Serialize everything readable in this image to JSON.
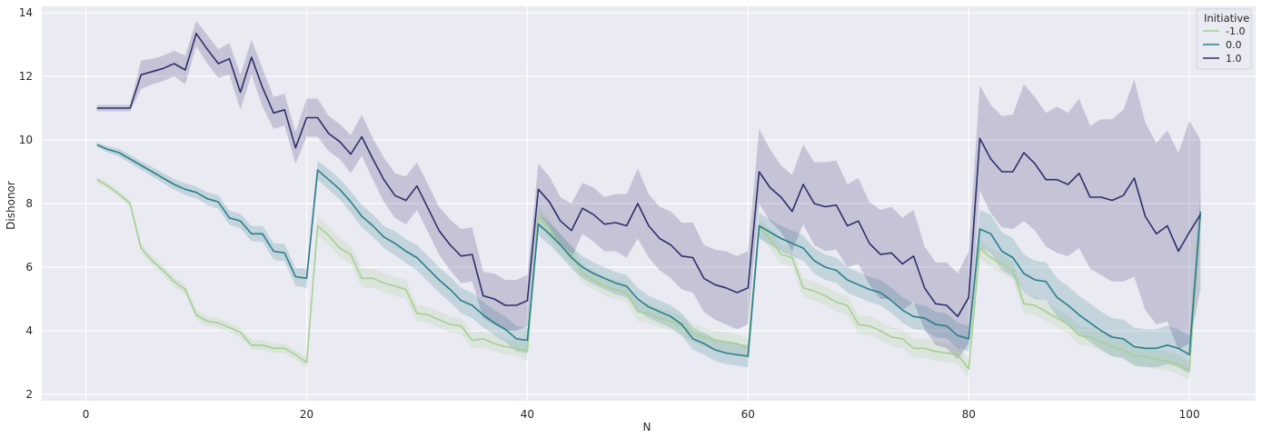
{
  "chart_data": {
    "type": "line",
    "xlabel": "N",
    "ylabel": "Dishonor",
    "xlim": [
      -4,
      106
    ],
    "ylim": [
      1.8,
      14.2
    ],
    "xticks": [
      0,
      20,
      40,
      60,
      80,
      100
    ],
    "yticks": [
      2,
      4,
      6,
      8,
      10,
      12,
      14
    ],
    "grid": true,
    "legend": {
      "title": "Initiative",
      "placement": "top-right"
    },
    "series": [
      {
        "name": "-1.0",
        "color": "#a6cf92",
        "x": [
          1,
          2,
          3,
          4,
          5,
          6,
          7,
          8,
          9,
          10,
          11,
          12,
          13,
          14,
          15,
          16,
          17,
          18,
          19,
          20,
          21,
          22,
          23,
          24,
          25,
          26,
          27,
          28,
          29,
          30,
          31,
          32,
          33,
          34,
          35,
          36,
          37,
          38,
          39,
          40,
          41,
          42,
          43,
          44,
          45,
          46,
          47,
          48,
          49,
          50,
          51,
          52,
          53,
          54,
          55,
          56,
          57,
          58,
          59,
          60,
          61,
          62,
          63,
          64,
          65,
          66,
          67,
          68,
          69,
          70,
          71,
          72,
          73,
          74,
          75,
          76,
          77,
          78,
          79,
          80,
          81,
          82,
          83,
          84,
          85,
          86,
          87,
          88,
          89,
          90,
          91,
          92,
          93,
          94,
          95,
          96,
          97,
          98,
          99,
          100,
          101
        ],
        "y": [
          8.75,
          8.55,
          8.3,
          8.0,
          6.6,
          6.2,
          5.9,
          5.55,
          5.3,
          4.5,
          4.3,
          4.25,
          4.1,
          3.95,
          3.55,
          3.55,
          3.45,
          3.45,
          3.25,
          3.0,
          7.3,
          7.0,
          6.6,
          6.4,
          5.65,
          5.65,
          5.5,
          5.4,
          5.3,
          4.55,
          4.5,
          4.35,
          4.2,
          4.15,
          3.7,
          3.75,
          3.6,
          3.5,
          3.45,
          3.35,
          7.6,
          7.2,
          6.7,
          6.4,
          5.8,
          5.6,
          5.4,
          5.3,
          5.2,
          4.6,
          4.55,
          4.4,
          4.3,
          4.15,
          3.95,
          3.8,
          3.7,
          3.65,
          3.6,
          3.45,
          7.25,
          6.9,
          6.4,
          6.3,
          5.35,
          5.25,
          5.1,
          4.9,
          4.8,
          4.2,
          4.15,
          4.0,
          3.8,
          3.75,
          3.45,
          3.45,
          3.35,
          3.3,
          3.25,
          2.8,
          6.6,
          6.3,
          6.1,
          5.9,
          4.85,
          4.8,
          4.6,
          4.4,
          4.2,
          3.85,
          3.8,
          3.65,
          3.5,
          3.4,
          3.2,
          3.2,
          3.1,
          3.05,
          2.95,
          2.75,
          7.6
        ],
        "lo": [
          8.65,
          8.45,
          8.2,
          7.9,
          6.45,
          6.05,
          5.75,
          5.4,
          5.15,
          4.35,
          4.15,
          4.1,
          3.95,
          3.8,
          3.4,
          3.4,
          3.3,
          3.3,
          3.1,
          2.85,
          7.0,
          6.7,
          6.3,
          6.1,
          5.35,
          5.35,
          5.2,
          5.1,
          5.0,
          4.3,
          4.25,
          4.1,
          3.95,
          3.9,
          3.45,
          3.5,
          3.35,
          3.25,
          3.2,
          3.05,
          7.3,
          6.9,
          6.4,
          6.1,
          5.5,
          5.3,
          5.1,
          5.0,
          4.9,
          4.3,
          4.25,
          4.1,
          4.0,
          3.85,
          3.65,
          3.5,
          3.4,
          3.35,
          3.3,
          3.15,
          6.95,
          6.6,
          6.1,
          6.0,
          5.05,
          4.95,
          4.8,
          4.6,
          4.5,
          3.9,
          3.85,
          3.7,
          3.5,
          3.45,
          3.15,
          3.15,
          3.05,
          3.0,
          2.95,
          2.5,
          6.3,
          6.0,
          5.8,
          5.6,
          4.55,
          4.5,
          4.3,
          4.1,
          3.9,
          3.55,
          3.5,
          3.35,
          3.2,
          3.1,
          2.9,
          2.9,
          2.8,
          2.75,
          2.65,
          2.45,
          7.3
        ],
        "hi": [
          8.85,
          8.65,
          8.4,
          8.1,
          6.75,
          6.35,
          6.05,
          5.7,
          5.45,
          4.65,
          4.45,
          4.4,
          4.25,
          4.1,
          3.7,
          3.7,
          3.6,
          3.6,
          3.4,
          3.15,
          7.6,
          7.3,
          6.9,
          6.7,
          5.95,
          5.95,
          5.8,
          5.7,
          5.6,
          4.8,
          4.75,
          4.6,
          4.45,
          4.4,
          3.95,
          4.0,
          3.85,
          3.75,
          3.7,
          3.65,
          7.9,
          7.5,
          7.0,
          6.7,
          6.1,
          5.9,
          5.7,
          5.6,
          5.5,
          4.9,
          4.85,
          4.7,
          4.6,
          4.45,
          4.25,
          4.1,
          4.0,
          3.95,
          3.9,
          3.75,
          7.55,
          7.2,
          6.7,
          6.6,
          5.65,
          5.55,
          5.4,
          5.2,
          5.1,
          4.5,
          4.45,
          4.3,
          4.1,
          4.05,
          3.75,
          3.75,
          3.65,
          3.6,
          3.55,
          3.1,
          6.9,
          6.6,
          6.4,
          6.2,
          5.15,
          5.1,
          4.9,
          4.7,
          4.5,
          4.15,
          4.1,
          3.95,
          3.8,
          3.7,
          3.5,
          3.5,
          3.4,
          3.35,
          3.25,
          3.05,
          7.9
        ]
      },
      {
        "name": "0.0",
        "color": "#2a7f8a",
        "x": [
          1,
          2,
          3,
          4,
          5,
          6,
          7,
          8,
          9,
          10,
          11,
          12,
          13,
          14,
          15,
          16,
          17,
          18,
          19,
          20,
          21,
          22,
          23,
          24,
          25,
          26,
          27,
          28,
          29,
          30,
          31,
          32,
          33,
          34,
          35,
          36,
          37,
          38,
          39,
          40,
          41,
          42,
          43,
          44,
          45,
          46,
          47,
          48,
          49,
          50,
          51,
          52,
          53,
          54,
          55,
          56,
          57,
          58,
          59,
          60,
          61,
          62,
          63,
          64,
          65,
          66,
          67,
          68,
          69,
          70,
          71,
          72,
          73,
          74,
          75,
          76,
          77,
          78,
          79,
          80,
          81,
          82,
          83,
          84,
          85,
          86,
          87,
          88,
          89,
          90,
          91,
          92,
          93,
          94,
          95,
          96,
          97,
          98,
          99,
          100,
          101
        ],
        "y": [
          9.85,
          9.7,
          9.6,
          9.4,
          9.2,
          9.0,
          8.8,
          8.6,
          8.45,
          8.35,
          8.15,
          8.05,
          7.55,
          7.45,
          7.05,
          7.05,
          6.5,
          6.45,
          5.7,
          5.65,
          9.05,
          8.75,
          8.45,
          8.05,
          7.6,
          7.3,
          6.95,
          6.75,
          6.5,
          6.3,
          5.95,
          5.6,
          5.3,
          4.95,
          4.8,
          4.5,
          4.25,
          4.05,
          3.75,
          3.7,
          7.35,
          7.05,
          6.7,
          6.3,
          6.0,
          5.8,
          5.65,
          5.5,
          5.4,
          5.0,
          4.75,
          4.6,
          4.45,
          4.2,
          3.75,
          3.6,
          3.4,
          3.3,
          3.25,
          3.2,
          7.3,
          7.1,
          6.9,
          6.75,
          6.6,
          6.2,
          6.0,
          5.9,
          5.6,
          5.45,
          5.3,
          5.2,
          4.95,
          4.65,
          4.45,
          4.4,
          4.2,
          4.15,
          3.85,
          3.75,
          7.2,
          7.05,
          6.5,
          6.3,
          5.8,
          5.6,
          5.55,
          5.05,
          4.8,
          4.5,
          4.25,
          4.0,
          3.8,
          3.75,
          3.5,
          3.45,
          3.45,
          3.55,
          3.45,
          3.25,
          7.75
        ],
        "lo": [
          9.78,
          9.6,
          9.48,
          9.27,
          9.06,
          8.85,
          8.64,
          8.43,
          8.27,
          8.16,
          7.95,
          7.84,
          7.33,
          7.22,
          6.81,
          6.8,
          6.24,
          6.18,
          5.42,
          5.35,
          8.75,
          8.43,
          8.12,
          7.72,
          7.25,
          6.95,
          6.6,
          6.38,
          6.12,
          5.9,
          5.55,
          5.2,
          4.9,
          4.55,
          4.4,
          4.1,
          3.85,
          3.65,
          3.35,
          3.3,
          7.0,
          6.7,
          6.35,
          5.95,
          5.65,
          5.45,
          5.3,
          5.15,
          5.05,
          4.65,
          4.4,
          4.25,
          4.1,
          3.85,
          3.4,
          3.25,
          3.05,
          2.95,
          2.9,
          2.85,
          6.9,
          6.7,
          6.5,
          6.35,
          6.2,
          5.8,
          5.6,
          5.5,
          5.2,
          5.05,
          4.9,
          4.8,
          4.55,
          4.25,
          4.05,
          4.0,
          3.8,
          3.75,
          3.45,
          3.35,
          6.6,
          6.45,
          5.9,
          5.7,
          5.2,
          5.0,
          4.95,
          4.45,
          4.2,
          3.9,
          3.65,
          3.4,
          3.2,
          3.15,
          2.9,
          2.85,
          2.85,
          2.95,
          2.85,
          2.65,
          7.15
        ],
        "hi": [
          9.92,
          9.8,
          9.72,
          9.53,
          9.34,
          9.15,
          8.96,
          8.77,
          8.63,
          8.54,
          8.35,
          8.26,
          7.77,
          7.68,
          7.29,
          7.3,
          6.76,
          6.72,
          5.98,
          5.95,
          9.35,
          9.07,
          8.78,
          8.38,
          7.95,
          7.65,
          7.3,
          7.12,
          6.88,
          6.7,
          6.35,
          6.0,
          5.7,
          5.35,
          5.2,
          4.9,
          4.65,
          4.45,
          4.15,
          4.1,
          7.7,
          7.4,
          7.05,
          6.65,
          6.35,
          6.15,
          6.0,
          5.85,
          5.75,
          5.35,
          5.1,
          4.95,
          4.8,
          4.55,
          4.1,
          3.95,
          3.75,
          3.65,
          3.6,
          3.55,
          7.7,
          7.5,
          7.3,
          7.15,
          7.0,
          6.6,
          6.4,
          6.3,
          6.0,
          5.85,
          5.7,
          5.6,
          5.35,
          5.05,
          4.85,
          4.8,
          4.6,
          4.55,
          4.25,
          4.15,
          7.8,
          7.65,
          7.1,
          6.9,
          6.4,
          6.2,
          6.15,
          5.65,
          5.4,
          5.1,
          4.85,
          4.6,
          4.4,
          4.35,
          4.1,
          4.05,
          4.05,
          4.15,
          4.05,
          3.85,
          8.35
        ]
      },
      {
        "name": "1.0",
        "color": "#2d2f6b",
        "x": [
          1,
          2,
          3,
          4,
          5,
          6,
          7,
          8,
          9,
          10,
          11,
          12,
          13,
          14,
          15,
          16,
          17,
          18,
          19,
          20,
          21,
          22,
          23,
          24,
          25,
          26,
          27,
          28,
          29,
          30,
          31,
          32,
          33,
          34,
          35,
          36,
          37,
          38,
          39,
          40,
          41,
          42,
          43,
          44,
          45,
          46,
          47,
          48,
          49,
          50,
          51,
          52,
          53,
          54,
          55,
          56,
          57,
          58,
          59,
          60,
          61,
          62,
          63,
          64,
          65,
          66,
          67,
          68,
          69,
          70,
          71,
          72,
          73,
          74,
          75,
          76,
          77,
          78,
          79,
          80,
          81,
          82,
          83,
          84,
          85,
          86,
          87,
          88,
          89,
          90,
          91,
          92,
          93,
          94,
          95,
          96,
          97,
          98,
          99,
          100,
          101
        ],
        "y": [
          11.0,
          11.0,
          11.0,
          11.0,
          12.05,
          12.15,
          12.25,
          12.4,
          12.2,
          13.35,
          12.85,
          12.4,
          12.55,
          11.5,
          12.6,
          11.65,
          10.85,
          10.95,
          9.75,
          10.7,
          10.7,
          10.2,
          9.95,
          9.55,
          10.1,
          9.4,
          8.75,
          8.25,
          8.1,
          8.55,
          7.85,
          7.15,
          6.7,
          6.35,
          6.4,
          5.1,
          5.0,
          4.8,
          4.8,
          4.95,
          8.45,
          8.05,
          7.45,
          7.15,
          7.85,
          7.65,
          7.35,
          7.4,
          7.3,
          8.0,
          7.3,
          6.9,
          6.7,
          6.35,
          6.3,
          5.65,
          5.45,
          5.35,
          5.2,
          5.35,
          9.0,
          8.5,
          8.2,
          7.75,
          8.6,
          8.0,
          7.9,
          7.95,
          7.3,
          7.45,
          6.75,
          6.4,
          6.45,
          6.1,
          6.35,
          5.35,
          4.85,
          4.8,
          4.45,
          5.05,
          10.05,
          9.4,
          9.0,
          9.0,
          9.6,
          9.25,
          8.75,
          8.75,
          8.6,
          8.95,
          8.2,
          8.2,
          8.1,
          8.25,
          8.8,
          7.6,
          7.05,
          7.3,
          6.5,
          7.1,
          7.65
        ],
        "lo": [
          10.9,
          10.9,
          10.9,
          10.9,
          11.6,
          11.75,
          11.85,
          12.0,
          11.75,
          12.95,
          12.4,
          11.95,
          12.05,
          10.95,
          12.05,
          11.05,
          10.35,
          10.45,
          9.25,
          10.1,
          10.1,
          9.65,
          9.4,
          8.95,
          9.5,
          8.75,
          8.05,
          7.55,
          7.35,
          7.8,
          7.1,
          6.4,
          5.9,
          5.5,
          5.55,
          4.4,
          4.2,
          4.0,
          4.0,
          4.15,
          7.7,
          7.25,
          6.7,
          6.3,
          7.05,
          6.8,
          6.5,
          6.5,
          6.3,
          6.9,
          6.3,
          5.9,
          5.65,
          5.3,
          5.2,
          4.6,
          4.35,
          4.2,
          4.05,
          4.2,
          8.0,
          7.45,
          7.1,
          6.5,
          7.35,
          6.7,
          6.5,
          6.55,
          6.0,
          6.1,
          5.45,
          5.0,
          5.0,
          4.65,
          4.9,
          4.05,
          3.55,
          3.45,
          3.1,
          3.6,
          8.4,
          7.7,
          7.25,
          7.2,
          7.45,
          7.15,
          6.65,
          6.45,
          6.35,
          6.6,
          5.95,
          5.75,
          5.55,
          5.55,
          5.7,
          4.65,
          4.2,
          4.3,
          3.4,
          3.6,
          5.3
        ],
        "hi": [
          11.1,
          11.1,
          11.1,
          11.1,
          12.5,
          12.55,
          12.65,
          12.8,
          12.65,
          13.75,
          13.3,
          12.85,
          13.05,
          12.05,
          13.15,
          12.25,
          11.35,
          11.45,
          10.25,
          11.3,
          11.3,
          10.75,
          10.5,
          10.15,
          10.8,
          10.05,
          9.45,
          8.95,
          8.85,
          9.3,
          8.6,
          7.9,
          7.5,
          7.2,
          7.25,
          5.85,
          5.8,
          5.6,
          5.6,
          5.75,
          9.25,
          8.85,
          8.2,
          8.0,
          8.65,
          8.5,
          8.2,
          8.3,
          8.3,
          9.1,
          8.3,
          7.9,
          7.75,
          7.4,
          7.4,
          6.7,
          6.55,
          6.5,
          6.35,
          6.5,
          10.35,
          9.7,
          9.2,
          8.9,
          9.85,
          9.3,
          9.3,
          9.35,
          8.6,
          8.8,
          8.05,
          7.8,
          7.9,
          7.55,
          7.8,
          6.65,
          6.15,
          6.15,
          5.8,
          6.5,
          11.7,
          11.1,
          10.75,
          10.8,
          11.75,
          11.35,
          10.85,
          11.05,
          10.85,
          11.3,
          10.45,
          10.65,
          10.65,
          10.95,
          11.9,
          10.55,
          9.9,
          10.3,
          9.6,
          10.6,
          10.0
        ]
      }
    ]
  }
}
